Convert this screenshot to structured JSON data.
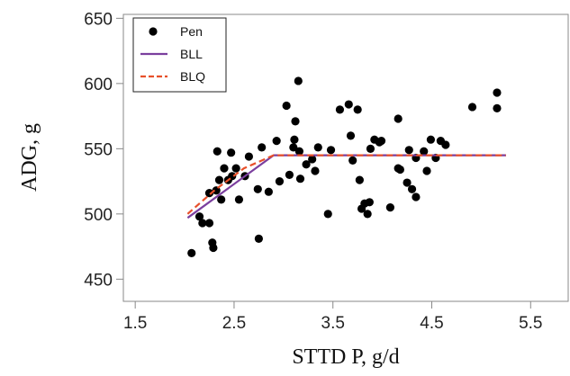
{
  "chart_data": {
    "type": "scatter",
    "xlabel": "STTD P, g/d",
    "ylabel": "ADG, g",
    "xlim": [
      1.38,
      5.88
    ],
    "ylim": [
      433,
      653
    ],
    "xticks": [
      1.5,
      2.5,
      3.5,
      4.5,
      5.5
    ],
    "yticks": [
      450,
      500,
      550,
      600,
      650
    ],
    "legend": "top-left",
    "series": [
      {
        "name": "Pen",
        "type": "scatter",
        "color": "#000000",
        "x": [
          2.07,
          2.15,
          2.18,
          2.25,
          2.28,
          2.29,
          2.25,
          2.32,
          2.33,
          2.35,
          2.37,
          2.4,
          2.44,
          2.47,
          2.48,
          2.52,
          2.55,
          2.61,
          2.65,
          2.74,
          2.75,
          2.78,
          2.85,
          2.93,
          2.96,
          3.03,
          3.06,
          3.1,
          3.11,
          3.12,
          3.15,
          3.16,
          3.17,
          3.23,
          3.29,
          3.32,
          3.35,
          3.45,
          3.48,
          3.57,
          3.66,
          3.68,
          3.7,
          3.75,
          3.77,
          3.79,
          3.82,
          3.85,
          3.87,
          3.88,
          3.92,
          3.97,
          3.99,
          4.08,
          4.16,
          4.16,
          4.18,
          4.25,
          4.27,
          4.3,
          4.34,
          4.34,
          4.42,
          4.45,
          4.49,
          4.54,
          4.59,
          4.64,
          4.91,
          5.16,
          5.16
        ],
        "values": [
          470,
          498,
          493,
          493,
          478,
          474,
          516,
          518,
          548,
          526,
          511,
          535,
          526,
          547,
          529,
          535,
          511,
          529,
          544,
          519,
          481,
          551,
          517,
          556,
          525,
          583,
          530,
          551,
          557,
          571,
          602,
          548,
          527,
          538,
          542,
          533,
          551,
          500,
          549,
          580,
          584,
          560,
          541,
          580,
          526,
          504,
          508,
          500,
          509,
          550,
          557,
          555,
          556,
          505,
          535,
          573,
          534,
          524,
          549,
          519,
          513,
          543,
          548,
          533,
          557,
          543,
          556,
          553,
          582,
          593,
          581
        ]
      },
      {
        "name": "BLL",
        "type": "line",
        "color": "#7b3f9e",
        "line_style": "solid",
        "x": [
          2.03,
          2.9,
          5.25
        ],
        "values": [
          497,
          545,
          545
        ]
      },
      {
        "name": "BLQ",
        "type": "line",
        "color": "#e8502a",
        "line_style": "dashed",
        "x": [
          2.03,
          2.3,
          2.6,
          2.9,
          5.25
        ],
        "values": [
          500,
          518,
          535,
          545,
          545
        ]
      }
    ]
  }
}
